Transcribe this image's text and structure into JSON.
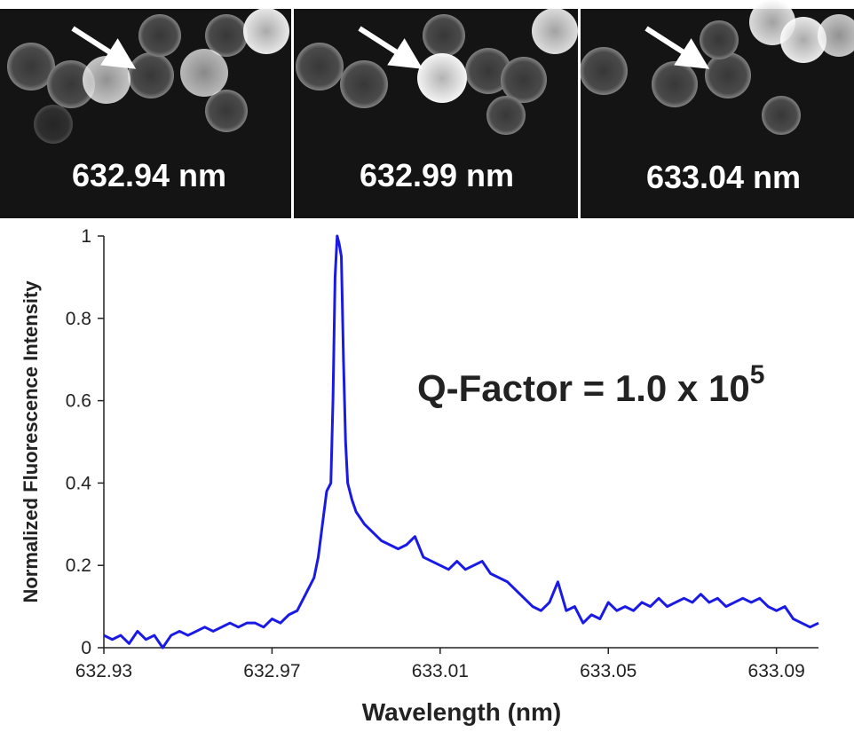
{
  "panels": [
    {
      "label": "632.94 nm"
    },
    {
      "label": "632.99 nm"
    },
    {
      "label": "633.04 nm"
    }
  ],
  "chart_data": {
    "type": "line",
    "x_label": "Wavelength (nm)",
    "y_label": "Normalized Fluorescence Intensity",
    "annotation": {
      "text": "Q-Factor = 1.0 x 10",
      "superscript": "5"
    },
    "color": "#1a1ae6",
    "xlim": [
      632.93,
      633.1
    ],
    "xticks": [
      632.93,
      632.97,
      633.01,
      633.05,
      633.09
    ],
    "ylim": [
      0,
      1
    ],
    "yticks": [
      0,
      0.2,
      0.4,
      0.6,
      0.8,
      1
    ],
    "x": [
      632.93,
      632.932,
      632.934,
      632.936,
      632.938,
      632.94,
      632.942,
      632.944,
      632.946,
      632.948,
      632.95,
      632.952,
      632.954,
      632.956,
      632.958,
      632.96,
      632.962,
      632.964,
      632.966,
      632.968,
      632.97,
      632.972,
      632.974,
      632.976,
      632.978,
      632.98,
      632.981,
      632.982,
      632.983,
      632.984,
      632.9845,
      632.985,
      632.9855,
      632.986,
      632.9865,
      632.987,
      632.9875,
      632.988,
      632.989,
      632.99,
      632.992,
      632.994,
      632.996,
      632.998,
      633.0,
      633.002,
      633.004,
      633.006,
      633.008,
      633.01,
      633.012,
      633.014,
      633.016,
      633.018,
      633.02,
      633.022,
      633.024,
      633.026,
      633.028,
      633.03,
      633.032,
      633.034,
      633.036,
      633.038,
      633.04,
      633.042,
      633.044,
      633.046,
      633.048,
      633.05,
      633.052,
      633.054,
      633.056,
      633.058,
      633.06,
      633.062,
      633.064,
      633.066,
      633.068,
      633.07,
      633.072,
      633.074,
      633.076,
      633.078,
      633.08,
      633.082,
      633.084,
      633.086,
      633.088,
      633.09,
      633.092,
      633.094,
      633.096,
      633.098,
      633.1
    ],
    "values": [
      0.03,
      0.02,
      0.03,
      0.01,
      0.04,
      0.02,
      0.03,
      0.0,
      0.03,
      0.04,
      0.03,
      0.04,
      0.05,
      0.04,
      0.05,
      0.06,
      0.05,
      0.06,
      0.06,
      0.05,
      0.07,
      0.06,
      0.08,
      0.09,
      0.13,
      0.17,
      0.22,
      0.3,
      0.38,
      0.4,
      0.6,
      0.9,
      1,
      0.98,
      0.95,
      0.7,
      0.5,
      0.4,
      0.36,
      0.33,
      0.3,
      0.28,
      0.26,
      0.25,
      0.24,
      0.25,
      0.27,
      0.22,
      0.21,
      0.2,
      0.19,
      0.21,
      0.19,
      0.2,
      0.21,
      0.18,
      0.17,
      0.16,
      0.14,
      0.12,
      0.1,
      0.09,
      0.11,
      0.16,
      0.09,
      0.1,
      0.06,
      0.08,
      0.07,
      0.11,
      0.09,
      0.1,
      0.09,
      0.11,
      0.1,
      0.12,
      0.1,
      0.11,
      0.12,
      0.11,
      0.13,
      0.11,
      0.12,
      0.1,
      0.11,
      0.12,
      0.11,
      0.12,
      0.1,
      0.09,
      0.1,
      0.07,
      0.06,
      0.05,
      0.06
    ]
  }
}
